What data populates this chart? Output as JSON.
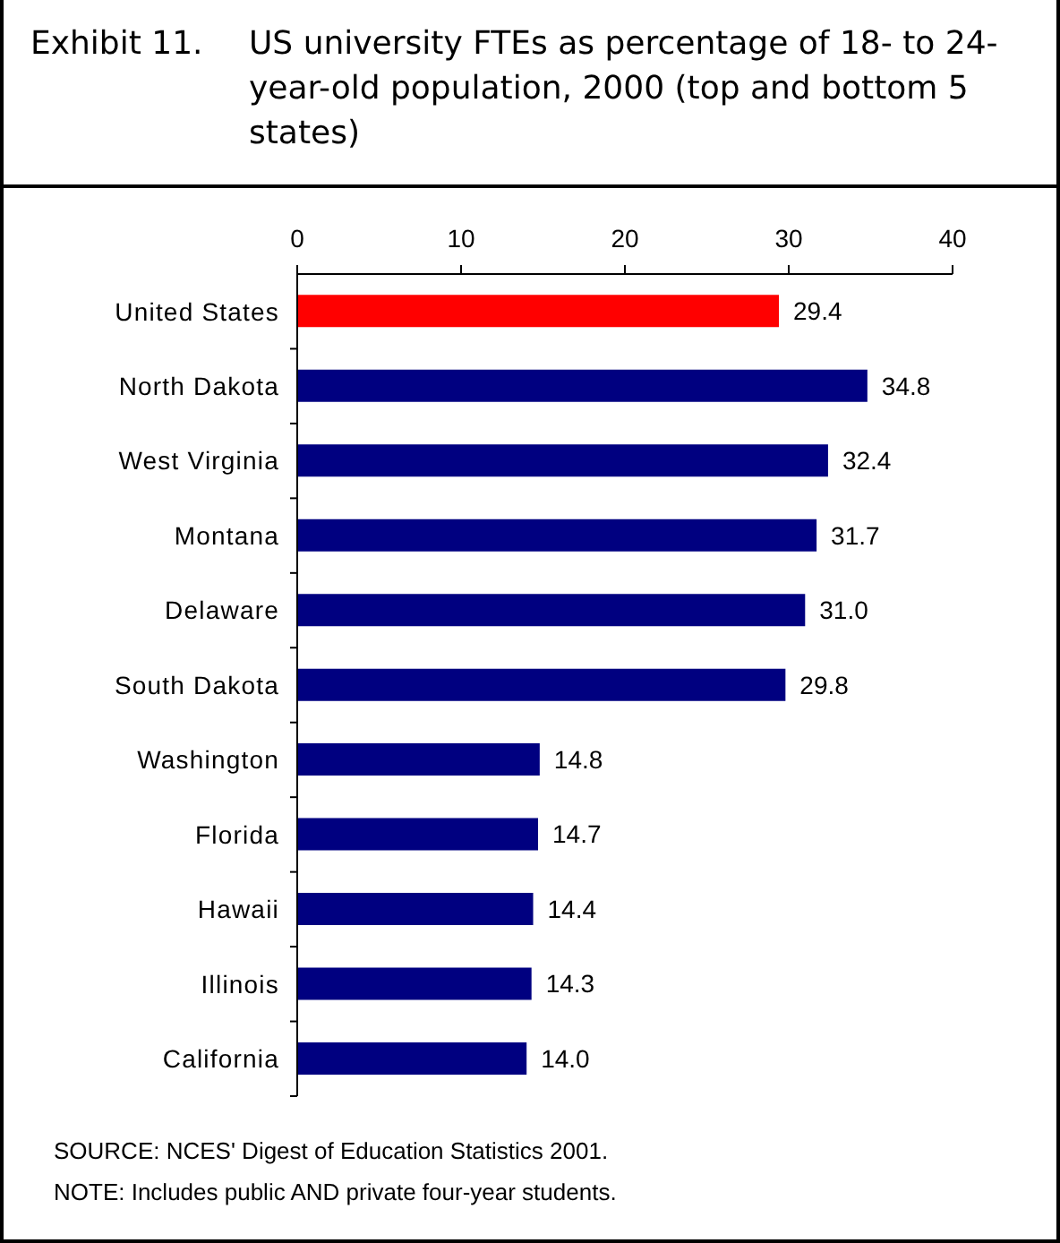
{
  "chart_data": {
    "type": "bar",
    "orientation": "horizontal",
    "title": "Exhibit 11.",
    "subtitle": "US university FTEs as percentage of 18- to 24-year-old population, 2000 (top and bottom 5 states)",
    "categories": [
      "United States",
      "North Dakota",
      "West Virginia",
      "Montana",
      "Delaware",
      "South Dakota",
      "Washington",
      "Florida",
      "Hawaii",
      "Illinois",
      "California"
    ],
    "values": [
      29.4,
      34.8,
      32.4,
      31.7,
      31.0,
      29.8,
      14.8,
      14.7,
      14.4,
      14.3,
      14.0
    ],
    "colors": [
      "#ff0000",
      "#000080",
      "#000080",
      "#000080",
      "#000080",
      "#000080",
      "#000080",
      "#000080",
      "#000080",
      "#000080",
      "#000080"
    ],
    "value_labels": [
      "29.4",
      "34.8",
      "32.4",
      "31.7",
      "31.0",
      "29.8",
      "14.8",
      "14.7",
      "14.4",
      "14.3",
      "14.0"
    ],
    "xlim": [
      0,
      40
    ],
    "xticks": [
      0,
      10,
      20,
      30,
      40
    ],
    "annotations": [
      "SOURCE: NCES' Digest of Education Statistics 2001.",
      "NOTE: Includes public AND private four-year students."
    ]
  }
}
